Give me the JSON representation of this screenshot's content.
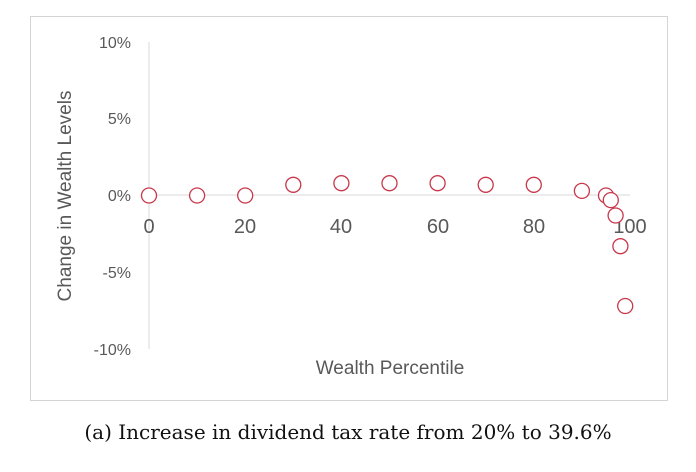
{
  "chart_data": {
    "type": "scatter",
    "title": "",
    "xlabel": "Wealth Percentile",
    "ylabel": "Change in Wealth Levels",
    "x_ticks": [
      "0",
      "20",
      "40",
      "60",
      "80",
      "100"
    ],
    "y_ticks": [
      "10%",
      "5%",
      "0%",
      "-5%",
      "-10%"
    ],
    "xlim": [
      0,
      100
    ],
    "ylim": [
      -10,
      10
    ],
    "grid": false,
    "legend": "none",
    "marker_color": "#c8384b",
    "series": [
      {
        "x": [
          0,
          10,
          20,
          30,
          40,
          50,
          60,
          70,
          80,
          90,
          95,
          96,
          97,
          98,
          99
        ],
        "y": [
          0.0,
          0.0,
          0.0,
          0.7,
          0.8,
          0.8,
          0.8,
          0.7,
          0.7,
          0.3,
          0.0,
          -0.3,
          -1.3,
          -3.3,
          -7.2
        ]
      }
    ]
  },
  "caption": "(a) Increase in dividend tax rate from 20% to 39.6%"
}
